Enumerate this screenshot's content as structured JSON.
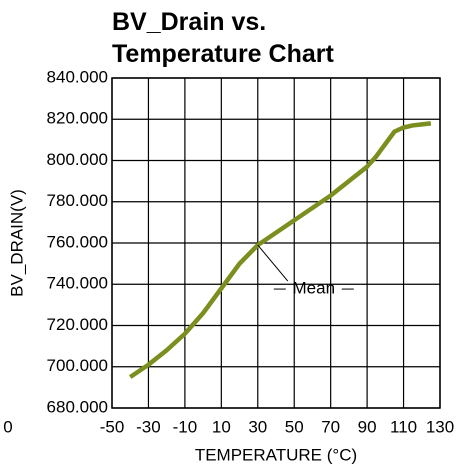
{
  "chart_data": {
    "type": "line",
    "title_lines": [
      "BV_Drain vs.",
      "Temperature Chart"
    ],
    "x_label": "TEMPERATURE (°C)",
    "y_label": "BV_DRAIN(V)",
    "x": [
      -40,
      -30,
      -20,
      -10,
      0,
      10,
      20,
      30,
      40,
      50,
      60,
      70,
      80,
      90,
      95,
      100,
      105,
      110,
      115,
      120,
      125
    ],
    "series": [
      {
        "name": "Mean",
        "color": "#7a8f1e",
        "values": [
          695,
          701,
          708,
          716,
          726,
          738,
          750,
          759,
          765,
          771,
          777,
          783,
          790,
          797,
          802,
          808,
          814,
          816,
          817,
          817.5,
          818
        ]
      }
    ],
    "xlim": [
      -50,
      130
    ],
    "xticks": [
      -50,
      -30,
      -10,
      10,
      30,
      50,
      70,
      90,
      110,
      130
    ],
    "ylim": [
      680,
      840
    ],
    "yticks": [
      {
        "value": 680,
        "label": "680.000"
      },
      {
        "value": 700,
        "label": "700.000"
      },
      {
        "value": 720,
        "label": "720.000"
      },
      {
        "value": 740,
        "label": "740.000"
      },
      {
        "value": 760,
        "label": "760.000"
      },
      {
        "value": 780,
        "label": "780.000"
      },
      {
        "value": 800,
        "label": "800.000"
      },
      {
        "value": 820,
        "label": "820.000"
      },
      {
        "value": 840,
        "label": "840.000"
      }
    ],
    "grid": true,
    "annotations": [
      {
        "text": "Mean",
        "x": 30,
        "y": 759
      },
      {
        "text": "0"
      }
    ]
  }
}
